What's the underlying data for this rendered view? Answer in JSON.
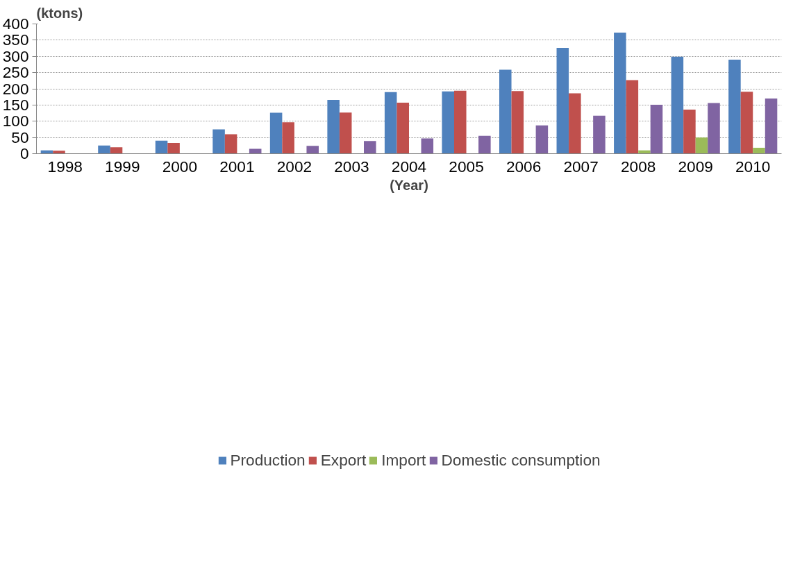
{
  "chart_data": {
    "type": "bar",
    "xlabel": "(Year)",
    "ylabel": "(ktons)",
    "categories": [
      "1998",
      "1999",
      "2000",
      "2001",
      "2002",
      "2003",
      "2004",
      "2005",
      "2006",
      "2007",
      "2008",
      "2009",
      "2010"
    ],
    "series": [
      {
        "name": "Production",
        "color": "#4f81bd",
        "values": [
          10,
          25,
          40,
          75,
          126,
          166,
          190,
          192,
          259,
          326,
          373,
          299,
          290
        ]
      },
      {
        "name": "Export",
        "color": "#c0504d",
        "values": [
          9,
          20,
          33,
          60,
          97,
          127,
          157,
          194,
          193,
          186,
          227,
          136,
          191
        ]
      },
      {
        "name": "Import",
        "color": "#9bbb59",
        "values": [
          null,
          null,
          null,
          null,
          null,
          null,
          null,
          null,
          null,
          null,
          10,
          50,
          18
        ]
      },
      {
        "name": "Domestic consumption",
        "color": "#8064a2",
        "values": [
          null,
          null,
          null,
          15,
          24,
          39,
          47,
          55,
          87,
          117,
          151,
          156,
          170
        ]
      }
    ],
    "ylim": [
      0,
      400
    ],
    "yticks": [
      0,
      50,
      100,
      150,
      200,
      250,
      300,
      350,
      400
    ],
    "grid": "y",
    "legend": "bottom"
  }
}
